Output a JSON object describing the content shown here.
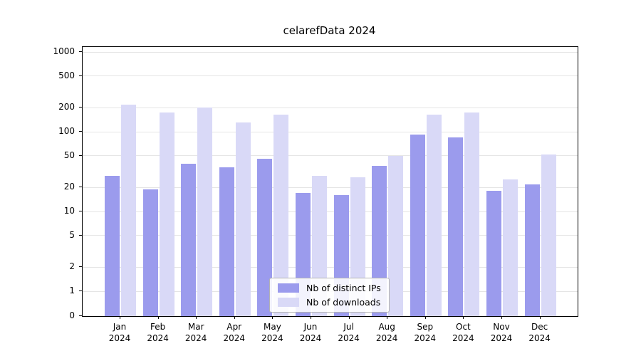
{
  "chart_data": {
    "type": "bar",
    "title": "celarefData 2024",
    "categories": [
      "Jan",
      "Feb",
      "Mar",
      "Apr",
      "May",
      "Jun",
      "Jul",
      "Aug",
      "Sep",
      "Oct",
      "Nov",
      "Dec"
    ],
    "year_label": "2024",
    "series": [
      {
        "name": "Nb of distinct IPs",
        "color": "#9b9bed",
        "values": [
          28,
          19,
          40,
          36,
          46,
          17,
          16,
          37,
          93,
          85,
          18,
          22
        ]
      },
      {
        "name": "Nb of downloads",
        "color": "#d9d9f7",
        "values": [
          220,
          175,
          200,
          130,
          165,
          28,
          27,
          50,
          165,
          175,
          25,
          52
        ]
      }
    ],
    "yticks": [
      0,
      1,
      2,
      5,
      10,
      20,
      50,
      100,
      200,
      500,
      1000
    ],
    "ylim": [
      0,
      1150
    ],
    "scale": "symlog",
    "grid": true,
    "legend_position": "inside-bottom-center",
    "colors": {
      "grid": "#e5e5e5",
      "axis": "#000000",
      "background": "#ffffff"
    }
  }
}
